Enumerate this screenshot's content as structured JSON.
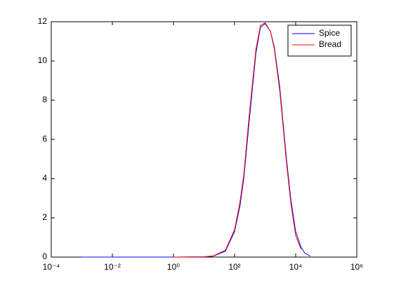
{
  "chart_data": {
    "type": "line",
    "x": [
      0.001,
      0.01,
      0.1,
      1,
      10,
      20,
      50,
      100,
      150,
      200,
      300,
      500,
      700,
      1000,
      1500,
      2000,
      3000,
      5000,
      7000,
      10000,
      15000,
      20000,
      30000
    ],
    "series": [
      {
        "name": "Spice",
        "color": "#0000ff",
        "values": [
          0,
          0,
          0,
          0,
          0.01,
          0.05,
          0.3,
          1.3,
          2.6,
          4.0,
          6.9,
          10.4,
          11.7,
          11.9,
          11.5,
          10.7,
          8.7,
          5.0,
          2.9,
          1.3,
          0.5,
          0.2,
          0.05
        ]
      },
      {
        "name": "Bread",
        "color": "#ff0000",
        "values": [
          null,
          null,
          null,
          0,
          0.02,
          0.06,
          0.35,
          1.4,
          2.8,
          4.2,
          7.2,
          10.6,
          11.8,
          11.95,
          11.5,
          10.6,
          8.5,
          4.8,
          2.7,
          1.1,
          0.4,
          null,
          null
        ]
      }
    ],
    "xscale": "log",
    "xlim": [
      0.0001,
      1000000
    ],
    "xticks": [
      {
        "value": 0.0001,
        "label": "10⁻⁴"
      },
      {
        "value": 0.01,
        "label": "10⁻²"
      },
      {
        "value": 1,
        "label": "10⁰"
      },
      {
        "value": 100,
        "label": "10²"
      },
      {
        "value": 10000,
        "label": "10⁴"
      },
      {
        "value": 1000000,
        "label": "10⁶"
      }
    ],
    "ylim": [
      0,
      12
    ],
    "yticks": [
      0,
      2,
      4,
      6,
      8,
      10,
      12
    ],
    "grid": false,
    "legend": "northeast"
  }
}
